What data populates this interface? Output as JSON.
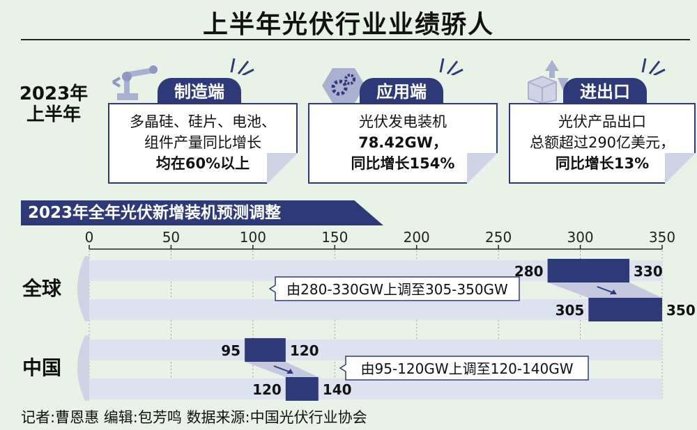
{
  "title": "上半年光伏行业业绩骄人",
  "period_label_line1": "2023年",
  "period_label_line2": "上半年",
  "cards": [
    {
      "heading": "制造端",
      "lines": [
        "多晶硅、硅片、电池、",
        "组件产量同比增长",
        "均在60%以上"
      ]
    },
    {
      "heading": "应用端",
      "lines": [
        "光伏发电装机",
        "78.42GW，",
        "同比增长154%"
      ]
    },
    {
      "heading": "进出口",
      "lines": [
        "光伏产品出口",
        "总额超过290亿美元，",
        "同比增长13%"
      ]
    }
  ],
  "colors": {
    "accent": "#2e3a78",
    "bg": "#e9f2e6",
    "band": "#dde2ee"
  },
  "chart_data": {
    "type": "bar",
    "title": "2023年全年光伏新增装机预测调整",
    "xlim": [
      0,
      350
    ],
    "ticks": [
      0,
      50,
      100,
      150,
      200,
      250,
      300,
      350
    ],
    "groups": [
      {
        "name": "全球",
        "ranges": [
          {
            "start": 280,
            "end": 330,
            "start_label": "280",
            "end_label": "330"
          },
          {
            "start": 305,
            "end": 350,
            "start_label": "305",
            "end_label": "350"
          }
        ],
        "annotation": "由280-330GW上调至305-350GW"
      },
      {
        "name": "中国",
        "ranges": [
          {
            "start": 95,
            "end": 120,
            "start_label": "95",
            "end_label": "120"
          },
          {
            "start": 120,
            "end": 140,
            "start_label": "120",
            "end_label": "140"
          }
        ],
        "annotation": "由95-120GW上调至120-140GW"
      }
    ]
  },
  "credits": "记者:曹恩惠   编辑:包芳鸣   数据来源:中国光伏行业协会"
}
